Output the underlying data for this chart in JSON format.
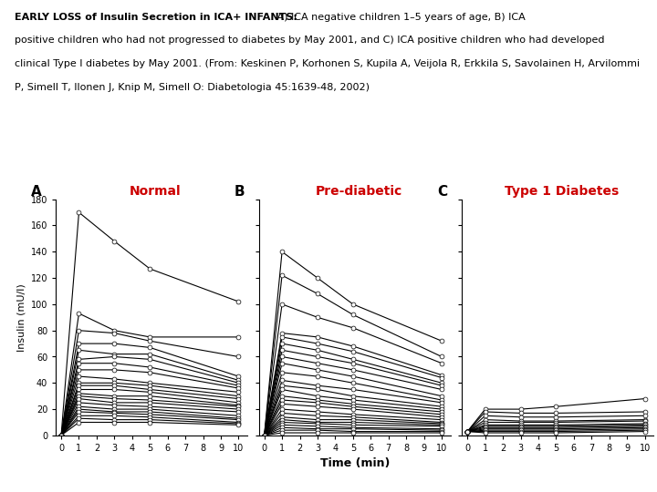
{
  "title_bold_part": "EARLY LOSS of Insulin Secretion in ICA+ INFANTS:",
  "title_rest": " A) ICA negative children 1–5 years of age, B) ICA positive children who had not progressed to diabetes by May 2001, and C) ICA positive children who had developed clinical Type I diabetes by May 2001. (From: Keskinen P, Korhonen S, Kupila A, Veijola R, Erkkila S, Savolainen H, Arvilommi P, Simell T, Ilonen J, Knip M, Simell O: Diabetologia 45:1639-48, 2002)",
  "panel_labels": [
    "A",
    "B",
    "C"
  ],
  "panel_titles": [
    "Normal",
    "Pre-diabetic",
    "Type 1 Diabetes"
  ],
  "panel_title_color": "#cc0000",
  "xlabel": "Time (min)",
  "ylabel": "Insulin (mU/l)",
  "ylim": [
    0,
    180
  ],
  "yticks": [
    0,
    20,
    40,
    60,
    80,
    100,
    120,
    140,
    160,
    180
  ],
  "xticks": [
    0,
    1,
    2,
    3,
    4,
    5,
    6,
    7,
    8,
    9,
    10
  ],
  "xdata_points": [
    0,
    1,
    3,
    5,
    10
  ],
  "normal_series": [
    [
      0,
      170,
      148,
      127,
      102
    ],
    [
      0,
      93,
      80,
      75,
      75
    ],
    [
      0,
      80,
      78,
      72,
      60
    ],
    [
      0,
      70,
      70,
      67,
      45
    ],
    [
      0,
      65,
      62,
      62,
      42
    ],
    [
      0,
      58,
      60,
      58,
      40
    ],
    [
      0,
      55,
      55,
      52,
      38
    ],
    [
      0,
      50,
      50,
      48,
      36
    ],
    [
      0,
      45,
      43,
      40,
      33
    ],
    [
      0,
      40,
      40,
      38,
      30
    ],
    [
      0,
      38,
      38,
      35,
      28
    ],
    [
      0,
      35,
      35,
      33,
      25
    ],
    [
      0,
      32,
      30,
      30,
      23
    ],
    [
      0,
      30,
      28,
      27,
      22
    ],
    [
      0,
      28,
      25,
      25,
      20
    ],
    [
      0,
      25,
      23,
      22,
      18
    ],
    [
      0,
      22,
      20,
      20,
      15
    ],
    [
      0,
      20,
      18,
      18,
      13
    ],
    [
      0,
      18,
      17,
      16,
      12
    ],
    [
      0,
      15,
      15,
      14,
      10
    ],
    [
      0,
      13,
      12,
      12,
      9
    ],
    [
      0,
      10,
      10,
      10,
      8
    ]
  ],
  "prediabetic_series": [
    [
      0,
      140,
      120,
      100,
      72
    ],
    [
      0,
      122,
      108,
      92,
      60
    ],
    [
      0,
      100,
      90,
      82,
      55
    ],
    [
      0,
      78,
      75,
      68,
      46
    ],
    [
      0,
      75,
      70,
      64,
      44
    ],
    [
      0,
      70,
      65,
      58,
      40
    ],
    [
      0,
      65,
      60,
      55,
      38
    ],
    [
      0,
      60,
      55,
      50,
      35
    ],
    [
      0,
      55,
      50,
      45,
      30
    ],
    [
      0,
      48,
      45,
      40,
      27
    ],
    [
      0,
      42,
      38,
      35,
      25
    ],
    [
      0,
      38,
      35,
      30,
      22
    ],
    [
      0,
      35,
      30,
      27,
      20
    ],
    [
      0,
      30,
      27,
      24,
      18
    ],
    [
      0,
      27,
      25,
      22,
      16
    ],
    [
      0,
      24,
      22,
      20,
      14
    ],
    [
      0,
      20,
      18,
      16,
      12
    ],
    [
      0,
      17,
      15,
      14,
      10
    ],
    [
      0,
      14,
      12,
      12,
      9
    ],
    [
      0,
      12,
      10,
      10,
      8
    ],
    [
      0,
      10,
      9,
      8,
      7
    ],
    [
      0,
      8,
      7,
      6,
      5
    ],
    [
      0,
      6,
      5,
      5,
      4
    ],
    [
      0,
      4,
      4,
      3,
      3
    ],
    [
      0,
      2,
      2,
      2,
      2
    ]
  ],
  "diabetes_series": [
    [
      3,
      20,
      20,
      22,
      28
    ],
    [
      3,
      18,
      17,
      17,
      18
    ],
    [
      3,
      15,
      14,
      14,
      15
    ],
    [
      3,
      12,
      11,
      11,
      12
    ],
    [
      3,
      10,
      10,
      10,
      11
    ],
    [
      3,
      8,
      8,
      8,
      9
    ],
    [
      3,
      7,
      7,
      7,
      8
    ],
    [
      3,
      6,
      6,
      6,
      7
    ],
    [
      3,
      5,
      5,
      5,
      6
    ],
    [
      3,
      4,
      4,
      4,
      5
    ],
    [
      3,
      3,
      3,
      3,
      4
    ],
    [
      3,
      2,
      2,
      2,
      3
    ]
  ],
  "line_color": "#000000",
  "marker_style": "o",
  "marker_face": "white",
  "marker_edge": "black",
  "marker_size": 3.5,
  "line_width": 0.8,
  "bg_color": "#ffffff",
  "header_fontsize": 8.0,
  "panel_label_fontsize": 11,
  "panel_title_fontsize": 10,
  "axis_fontsize": 7,
  "ylabel_fontsize": 8,
  "xlabel_fontsize": 9
}
